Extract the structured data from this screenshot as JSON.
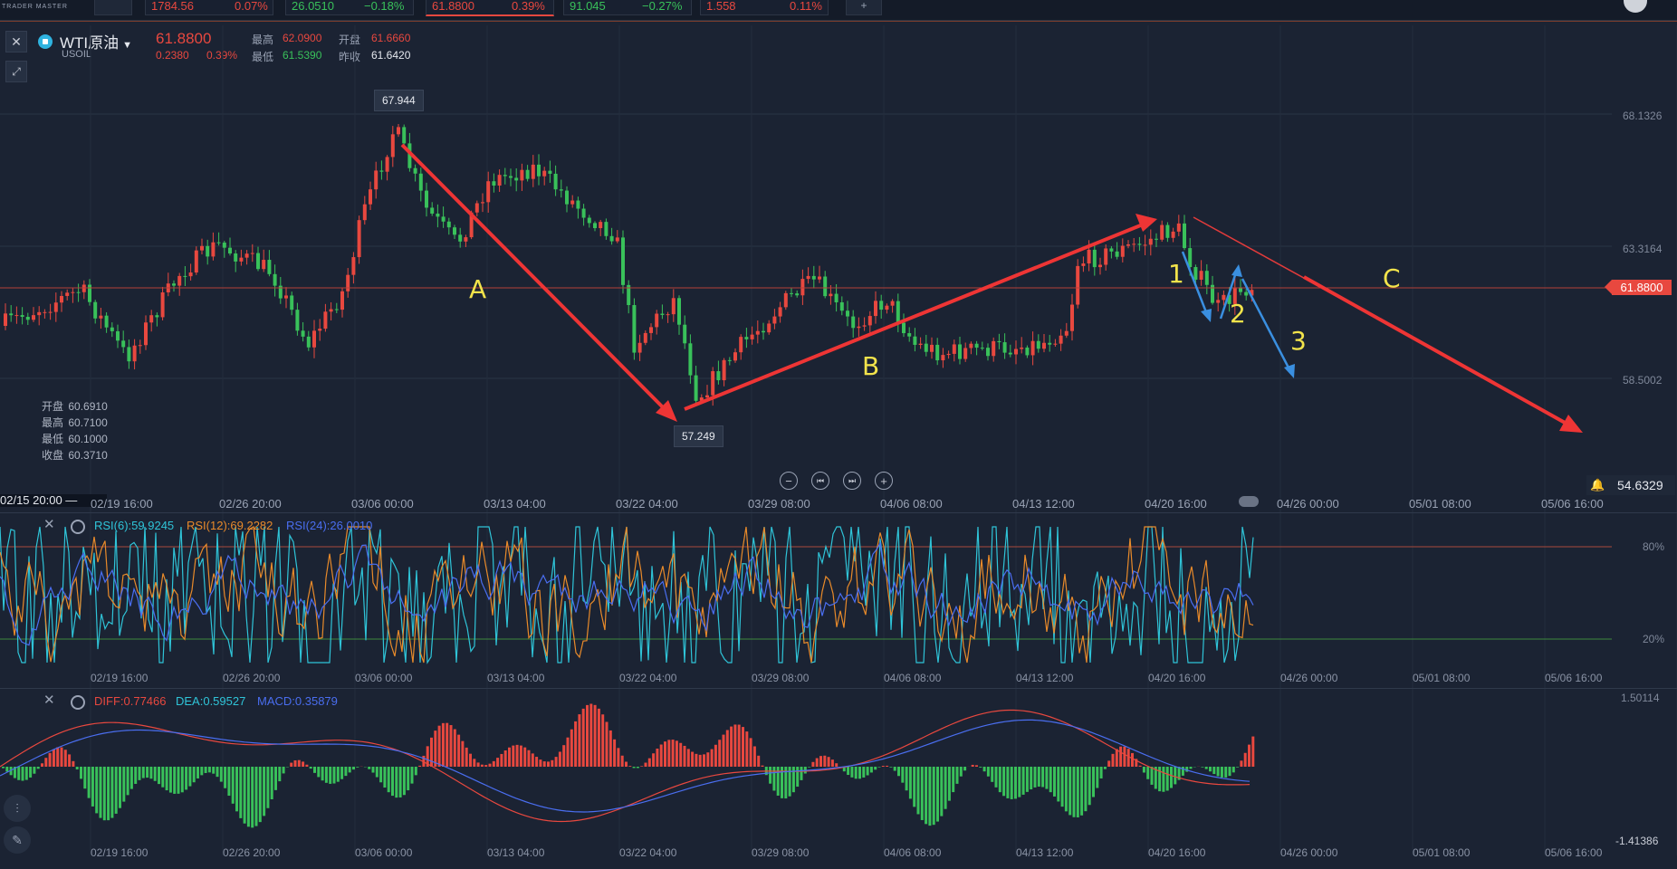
{
  "topbar": {
    "logo_sub": "TRADER MASTER",
    "tickers": [
      {
        "price": "1784.56",
        "change": "0.07%",
        "color": "red"
      },
      {
        "price": "26.0510",
        "change": "−0.18%",
        "color": "green"
      },
      {
        "price": "61.8800",
        "change": "0.39%",
        "color": "red"
      },
      {
        "price": "91.045",
        "change": "−0.27%",
        "color": "green"
      },
      {
        "price": "1.558",
        "change": "0.11%",
        "color": "red"
      }
    ],
    "add_label": "+"
  },
  "symbol": {
    "name": "WTI原油",
    "code": "USOIL",
    "price": "61.8800",
    "change": "0.2380",
    "change_pct": "0.39%",
    "high_label": "最高",
    "high": "62.0900",
    "low_label": "最低",
    "low": "61.5390",
    "open_label": "开盘",
    "open": "61.6660",
    "prev_label": "昨收",
    "prev": "61.6420"
  },
  "ohlc_box": {
    "open_label": "开盘",
    "open": "60.6910",
    "high_label": "最高",
    "high": "60.7100",
    "low_label": "最低",
    "low": "60.1000",
    "close_label": "收盘",
    "close": "60.3710"
  },
  "main_chart": {
    "y_labels": [
      "68.1326",
      "63.3164",
      "58.5002",
      "54.6329"
    ],
    "current_price": "61.8800",
    "callouts": {
      "high": "67.944",
      "low": "57.249"
    },
    "x_labels": [
      "02/15 20:00 —",
      "02/19 16:00",
      "02/26 20:00",
      "03/06 00:00",
      "03/13 04:00",
      "03/22 04:00",
      "03/29 08:00",
      "04/06 08:00",
      "04/13 12:00",
      "04/20 16:00",
      "04/26 00:00",
      "05/01 08:00",
      "05/06 16:00"
    ],
    "annotations": {
      "A": "A",
      "B": "B",
      "C": "C",
      "n1": "1",
      "n2": "2",
      "n3": "3"
    },
    "nav": {
      "zoom_out": "−",
      "prev": "⏮",
      "next": "⏭",
      "zoom_in": "+"
    }
  },
  "rsi": {
    "rsi6": "RSI(6):59.9245",
    "rsi12": "RSI(12):69.2282",
    "rsi24": "RSI(24):26.0010",
    "y_top": "80%",
    "y_bottom": "20%",
    "x_labels": [
      "02/19 16:00",
      "02/26 20:00",
      "03/06 00:00",
      "03/13 04:00",
      "03/22 04:00",
      "03/29 08:00",
      "04/06 08:00",
      "04/13 12:00",
      "04/20 16:00",
      "04/26 00:00",
      "05/01 08:00",
      "05/06 16:00"
    ]
  },
  "macd": {
    "diff": "DIFF:0.77466",
    "dea": "DEA:0.59527",
    "macd": "MACD:0.35879",
    "y_top": "1.50114",
    "y_bottom": "-1.41386",
    "x_labels": [
      "02/19 16:00",
      "02/26 20:00",
      "03/06 00:00",
      "03/13 04:00",
      "03/22 04:00",
      "03/29 08:00",
      "04/06 08:00",
      "04/13 12:00",
      "04/20 16:00",
      "04/26 00:00",
      "05/01 08:00",
      "05/06 16:00"
    ]
  },
  "colors": {
    "up": "#e8483f",
    "down": "#39c15a",
    "arrow_red": "#ee3535",
    "arrow_blue": "#3a8fe0",
    "annot_yellow": "#f2e34b",
    "rsi6": "#2fc4d8",
    "rsi12": "#e88a2a",
    "rsi24": "#4a6ef0"
  }
}
